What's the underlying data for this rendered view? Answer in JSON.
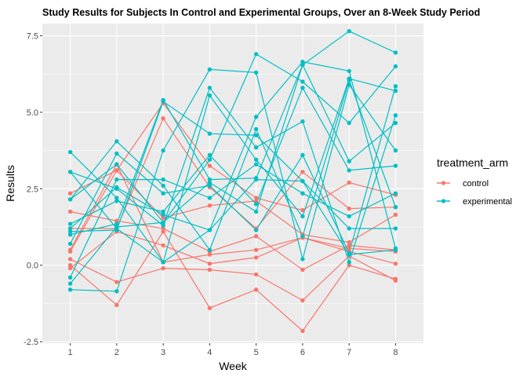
{
  "chart_data": {
    "type": "line",
    "title": "Study Results for Subjects In Control and Experimental Groups, Over an 8-Week Study Period",
    "xlabel": "Week",
    "ylabel": "Results",
    "x": [
      1,
      2,
      3,
      4,
      5,
      6,
      7,
      8
    ],
    "x_ticks": [
      "1",
      "2",
      "3",
      "4",
      "5",
      "6",
      "7",
      "8"
    ],
    "y_ticks": [
      "-2.5",
      "0.0",
      "2.5",
      "5.0",
      "7.5"
    ],
    "y_tick_values": [
      -2.5,
      0.0,
      2.5,
      5.0,
      7.5
    ],
    "xlim": [
      0.4,
      8.6
    ],
    "ylim": [
      -2.55,
      7.9
    ],
    "grid": true,
    "legend": {
      "title": "treatment_arm",
      "position": "right",
      "entries": [
        {
          "label": "control",
          "color": "#f8766d"
        },
        {
          "label": "experimental",
          "color": "#00bfc4"
        }
      ]
    },
    "series": [
      {
        "group": "control",
        "color": "#f8766d",
        "values": [
          0.0,
          -1.3,
          1.1,
          -1.4,
          -0.8,
          -2.15,
          0.0,
          -0.45
        ]
      },
      {
        "group": "control",
        "color": "#f8766d",
        "values": [
          0.2,
          -0.55,
          -0.1,
          -0.15,
          -0.3,
          -1.15,
          0.3,
          -0.5
        ]
      },
      {
        "group": "control",
        "color": "#f8766d",
        "values": [
          -0.1,
          1.1,
          0.65,
          0.05,
          0.25,
          0.9,
          0.45,
          0.05
        ]
      },
      {
        "group": "control",
        "color": "#f8766d",
        "values": [
          0.5,
          3.3,
          0.1,
          0.35,
          0.5,
          0.9,
          0.55,
          0.45
        ]
      },
      {
        "group": "control",
        "color": "#f8766d",
        "values": [
          1.75,
          1.45,
          1.2,
          0.45,
          0.95,
          -0.15,
          0.65,
          0.5
        ]
      },
      {
        "group": "control",
        "color": "#f8766d",
        "values": [
          2.35,
          3.1,
          1.55,
          1.95,
          2.1,
          1.0,
          0.75,
          1.65
        ]
      },
      {
        "group": "control",
        "color": "#f8766d",
        "values": [
          1.2,
          1.2,
          4.8,
          2.55,
          1.2,
          3.05,
          1.85,
          1.9
        ]
      },
      {
        "group": "control",
        "color": "#f8766d",
        "values": [
          0.45,
          3.1,
          5.3,
          3.25,
          2.2,
          1.8,
          2.7,
          2.3
        ]
      },
      {
        "group": "experimental",
        "color": "#00bfc4",
        "values": [
          3.7,
          2.2,
          0.1,
          1.15,
          4.85,
          6.65,
          6.35,
          0.55
        ]
      },
      {
        "group": "experimental",
        "color": "#00bfc4",
        "values": [
          -0.4,
          2.8,
          2.8,
          2.2,
          3.3,
          2.35,
          1.6,
          2.35
        ]
      },
      {
        "group": "experimental",
        "color": "#00bfc4",
        "values": [
          1.35,
          2.1,
          1.75,
          3.6,
          2.0,
          5.8,
          3.1,
          3.25
        ]
      },
      {
        "group": "experimental",
        "color": "#00bfc4",
        "values": [
          2.15,
          4.05,
          2.6,
          0.5,
          4.45,
          0.95,
          6.05,
          1.9
        ]
      },
      {
        "group": "experimental",
        "color": "#00bfc4",
        "values": [
          3.05,
          2.5,
          1.3,
          5.8,
          3.85,
          4.7,
          0.1,
          4.9
        ]
      },
      {
        "group": "experimental",
        "color": "#00bfc4",
        "values": [
          -0.8,
          -0.85,
          3.75,
          6.4,
          6.3,
          0.2,
          5.9,
          3.75
        ]
      },
      {
        "group": "experimental",
        "color": "#00bfc4",
        "values": [
          1.0,
          1.35,
          5.4,
          2.8,
          2.85,
          6.55,
          7.65,
          6.95
        ]
      },
      {
        "group": "experimental",
        "color": "#00bfc4",
        "values": [
          0.7,
          3.65,
          2.35,
          2.6,
          1.15,
          3.6,
          0.4,
          5.85
        ]
      },
      {
        "group": "experimental",
        "color": "#00bfc4",
        "values": [
          -0.6,
          1.25,
          1.4,
          3.45,
          6.9,
          6.0,
          4.65,
          6.5
        ]
      },
      {
        "group": "experimental",
        "color": "#00bfc4",
        "values": [
          1.1,
          1.15,
          5.35,
          4.3,
          4.25,
          2.75,
          1.2,
          1.2
        ]
      },
      {
        "group": "experimental",
        "color": "#00bfc4",
        "values": [
          3.05,
          1.2,
          0.1,
          5.55,
          3.45,
          1.6,
          6.1,
          5.7
        ]
      },
      {
        "group": "experimental",
        "color": "#00bfc4",
        "values": [
          2.15,
          3.3,
          1.4,
          2.7,
          1.75,
          6.55,
          3.4,
          4.65
        ]
      },
      {
        "group": "experimental",
        "color": "#00bfc4",
        "values": [
          1.2,
          2.55,
          1.65,
          1.15,
          2.8,
          2.75,
          0.35,
          0.5
        ]
      }
    ]
  }
}
